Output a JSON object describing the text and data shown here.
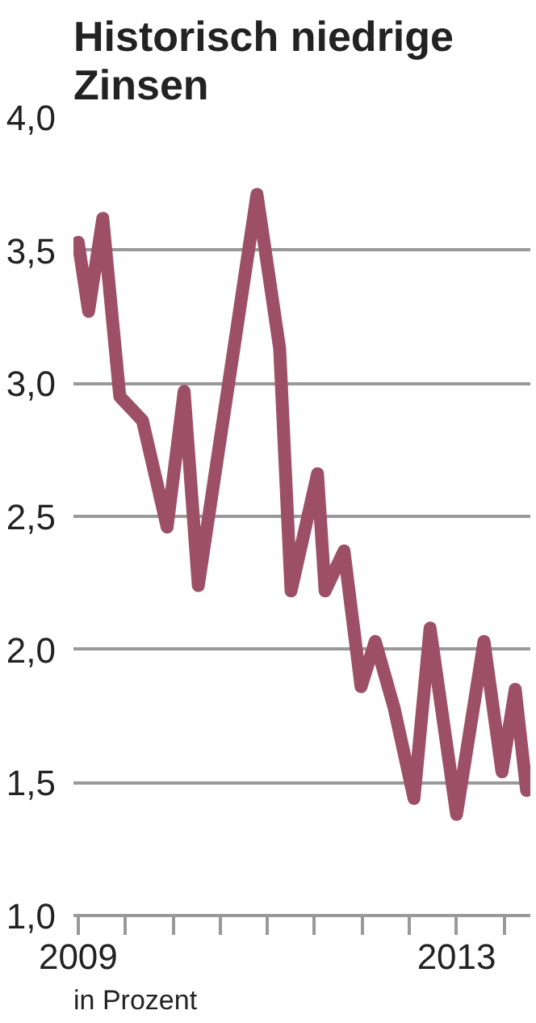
{
  "chart_data": {
    "type": "line",
    "title": "Historisch niedrige\nZinsen",
    "annotations": [
      "in Prozent"
    ],
    "x": [
      2009.0,
      2009.11,
      2009.26,
      2009.44,
      2009.68,
      2009.94,
      2010.12,
      2010.27,
      2010.89,
      2011.13,
      2011.25,
      2011.53,
      2011.61,
      2011.81,
      2011.99,
      2012.14,
      2012.34,
      2012.55,
      2012.72,
      2013.0,
      2013.29,
      2013.48,
      2013.62,
      2013.74
    ],
    "series": [
      {
        "color": "#9e4f68",
        "values": [
          3.53,
          3.27,
          3.62,
          2.95,
          2.86,
          2.46,
          2.97,
          2.24,
          3.71,
          3.13,
          2.22,
          2.66,
          2.22,
          2.37,
          1.86,
          2.03,
          1.78,
          1.44,
          2.08,
          1.38,
          2.03,
          1.54,
          1.85,
          1.47
        ]
      }
    ],
    "xlim": [
      2008.95,
      2013.78
    ],
    "xticks": [
      {
        "value": 2009,
        "label": "2009"
      },
      {
        "value": 2009.5,
        "label": null
      },
      {
        "value": 2010,
        "label": null
      },
      {
        "value": 2010.5,
        "label": null
      },
      {
        "value": 2011,
        "label": null
      },
      {
        "value": 2011.5,
        "label": null
      },
      {
        "value": 2012,
        "label": null
      },
      {
        "value": 2012.5,
        "label": null
      },
      {
        "value": 2013,
        "label": "2013"
      },
      {
        "value": 2013.5,
        "label": null
      }
    ],
    "ylim": [
      1.0,
      4.0
    ],
    "yticks": [
      {
        "value": 1.0,
        "label": "1,0"
      },
      {
        "value": 1.5,
        "label": "1,5"
      },
      {
        "value": 2.0,
        "label": "2,0"
      },
      {
        "value": 2.5,
        "label": "2,5"
      },
      {
        "value": 3.0,
        "label": "3,0"
      },
      {
        "value": 3.5,
        "label": "3,5"
      },
      {
        "value": 4.0,
        "label": "4,0"
      }
    ],
    "grid": "y",
    "marker": "none",
    "line_style": "solid"
  }
}
